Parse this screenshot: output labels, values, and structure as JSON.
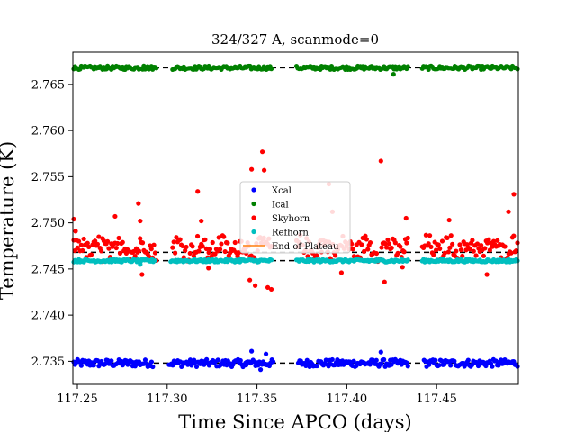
{
  "chart_data": {
    "type": "scatter",
    "title": "324/327 A, scanmode=0",
    "xlabel": "Time Since APCO (days)",
    "ylabel": "Temperature (K)",
    "xlim": [
      117.2475,
      117.4955
    ],
    "ylim": [
      2.7325,
      2.7685
    ],
    "xticks": [
      "117.25",
      "117.30",
      "117.35",
      "117.40",
      "117.45"
    ],
    "xtick_values": [
      117.25,
      117.3,
      117.35,
      117.4,
      117.45
    ],
    "yticks": [
      "2.735",
      "2.740",
      "2.745",
      "2.750",
      "2.755",
      "2.760",
      "2.765"
    ],
    "ytick_values": [
      2.735,
      2.74,
      2.745,
      2.75,
      2.755,
      2.76,
      2.765
    ],
    "grid": false,
    "legend_placement": "center",
    "series": [
      {
        "name": "Xcal",
        "color": "#0000ff",
        "marker": "dot",
        "level": 2.7348,
        "scatter": 0.0004,
        "segments": [
          [
            117.248,
            117.292
          ],
          [
            117.301,
            117.359
          ],
          [
            117.373,
            117.434
          ],
          [
            117.443,
            117.495
          ]
        ],
        "outliers": [
          [
            117.347,
            2.7361
          ],
          [
            117.355,
            2.7358
          ],
          [
            117.352,
            2.7341
          ],
          [
            117.419,
            2.736
          ],
          [
            117.344,
            2.7346
          ]
        ]
      },
      {
        "name": "Ical",
        "color": "#008000",
        "marker": "dot",
        "level": 2.7668,
        "scatter": 0.0002,
        "segments": [
          [
            117.248,
            117.294
          ],
          [
            117.303,
            117.358
          ],
          [
            117.372,
            117.434
          ],
          [
            117.442,
            117.495
          ]
        ],
        "outliers": [
          [
            117.426,
            2.7661
          ],
          [
            117.287,
            2.767
          ]
        ]
      },
      {
        "name": "Skyhorn",
        "color": "#ff0000",
        "marker": "dot",
        "level": 2.7473,
        "scatter": 0.001,
        "segments": [
          [
            117.248,
            117.294
          ],
          [
            117.303,
            117.358
          ],
          [
            117.372,
            117.434
          ],
          [
            117.442,
            117.495
          ]
        ],
        "outliers": [
          [
            117.248,
            2.7504
          ],
          [
            117.249,
            2.7491
          ],
          [
            117.271,
            2.7507
          ],
          [
            117.284,
            2.7521
          ],
          [
            117.285,
            2.7502
          ],
          [
            117.317,
            2.7534
          ],
          [
            117.319,
            2.7502
          ],
          [
            117.347,
            2.7558
          ],
          [
            117.353,
            2.7577
          ],
          [
            117.354,
            2.7557
          ],
          [
            117.356,
            2.743
          ],
          [
            117.358,
            2.7428
          ],
          [
            117.39,
            2.7542
          ],
          [
            117.392,
            2.7512
          ],
          [
            117.419,
            2.7567
          ],
          [
            117.421,
            2.7436
          ],
          [
            117.433,
            2.7505
          ],
          [
            117.457,
            2.7503
          ],
          [
            117.493,
            2.7531
          ],
          [
            117.49,
            2.7512
          ],
          [
            117.286,
            2.7444
          ],
          [
            117.323,
            2.7451
          ],
          [
            117.346,
            2.7438
          ],
          [
            117.349,
            2.7432
          ],
          [
            117.397,
            2.7446
          ],
          [
            117.431,
            2.7452
          ],
          [
            117.264,
            2.7458
          ],
          [
            117.344,
            2.7467
          ],
          [
            117.478,
            2.7444
          ]
        ]
      },
      {
        "name": "Refhorn",
        "color": "#00bfbf",
        "marker": "dot",
        "level": 2.7459,
        "scatter": 0.00015,
        "segments": [
          [
            117.248,
            117.293
          ],
          [
            117.302,
            117.358
          ],
          [
            117.372,
            117.434
          ],
          [
            117.442,
            117.495
          ]
        ],
        "outliers": [
          [
            117.285,
            2.7455
          ],
          [
            117.341,
            2.7461
          ]
        ]
      },
      {
        "name": "End of Plateau",
        "color": "#ff7f0e",
        "marker": "line",
        "values": []
      }
    ],
    "reference_lines": [
      2.7668,
      2.7468,
      2.7459,
      2.7348
    ]
  }
}
